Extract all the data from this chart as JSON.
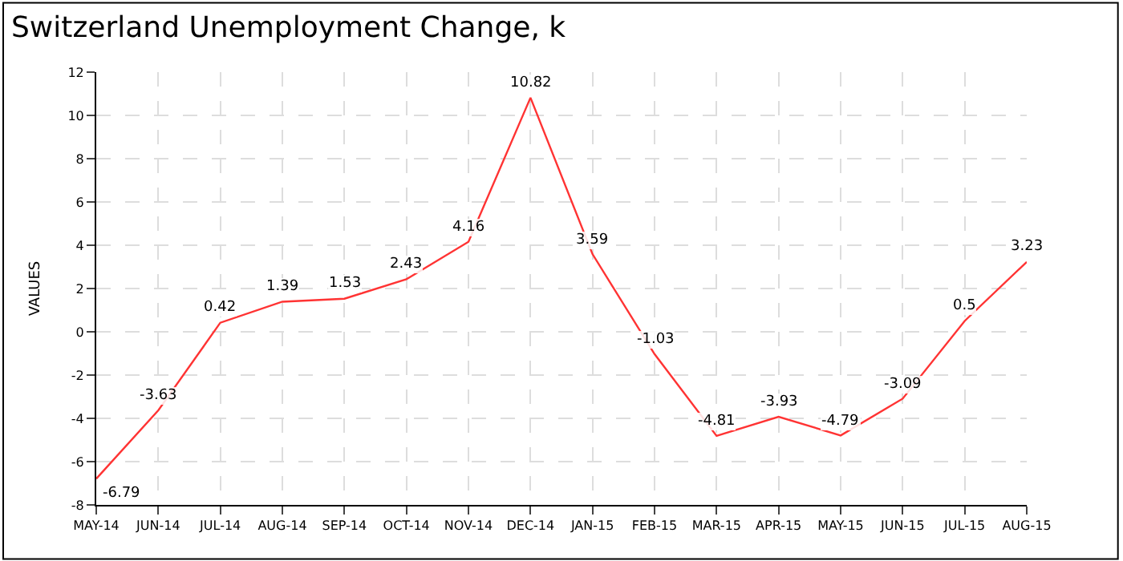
{
  "chart_data": {
    "type": "line",
    "title": "Switzerland Unemployment Change, k",
    "ylabel": "VALUES",
    "categories": [
      "MAY-14",
      "JUN-14",
      "JUL-14",
      "AUG-14",
      "SEP-14",
      "OCT-14",
      "NOV-14",
      "DEC-14",
      "JAN-15",
      "FEB-15",
      "MAR-15",
      "APR-15",
      "MAY-15",
      "JUN-15",
      "JUL-15",
      "AUG-15"
    ],
    "values": [
      -6.79,
      -3.63,
      0.42,
      1.39,
      1.53,
      2.43,
      4.16,
      10.82,
      3.59,
      -1.03,
      -4.81,
      -3.93,
      -4.79,
      -3.09,
      0.5,
      3.23
    ],
    "color": "#ff3333",
    "ylim": [
      -8,
      12
    ],
    "yticks": [
      -8,
      -6,
      -4,
      -2,
      0,
      2,
      4,
      6,
      8,
      10,
      12
    ],
    "grid": true,
    "data_labels": true,
    "marker": "none",
    "line_style": "solid",
    "legend": false
  }
}
